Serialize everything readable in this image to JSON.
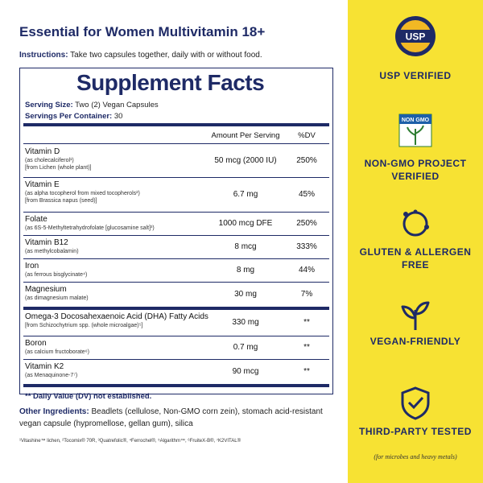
{
  "header": {
    "title": "Essential for Women Multivitamin 18+",
    "instructions_label": "Instructions:",
    "instructions": "Take two capsules together, daily with or without food."
  },
  "facts": {
    "heading": "Supplement Facts",
    "serving_size_label": "Serving Size:",
    "serving_size": "Two (2) Vegan Capsules",
    "servings_label": "Servings Per Container:",
    "servings": "30",
    "columns": [
      "Amount Per Serving",
      "%DV"
    ],
    "rows": [
      {
        "name": "Vitamin D",
        "details": [
          "(as cholecalciferol¹)",
          "[from Lichen (whole plant)]"
        ],
        "amount": "50 mcg (2000 IU)",
        "dv": "250%"
      },
      {
        "name": "Vitamin E",
        "details": [
          "(as alpha tocopherol from mixed tocopherols²)",
          "[from Brassica napus (seed)]"
        ],
        "amount": "6.7 mg",
        "dv": "45%"
      },
      {
        "name": "Folate",
        "details": [
          "(as 6S-5-Methyltetrahydrofolate [glucosamine salt]³)"
        ],
        "amount": "1000 mcg DFE",
        "dv": "250%"
      },
      {
        "name": "Vitamin B12",
        "details": [
          "(as methylcobalamin)"
        ],
        "amount": "8 mcg",
        "dv": "333%"
      },
      {
        "name": "Iron",
        "details": [
          "(as ferrous bisglycinate⁴)"
        ],
        "amount": "8 mg",
        "dv": "44%"
      },
      {
        "name": "Magnesium",
        "details": [
          "(as dimagnesium malate)"
        ],
        "amount": "30 mg",
        "dv": "7%"
      },
      {
        "name": "Omega-3 Docosahexaenoic Acid (DHA) Fatty Acids",
        "details": [
          "[from Schizochytrium spp. (whole microalgae)⁵]"
        ],
        "amount": "330 mg",
        "dv": "**"
      },
      {
        "name": "Boron",
        "details": [
          "(as calcium fructoborate⁶)"
        ],
        "amount": "0.7 mg",
        "dv": "**"
      },
      {
        "name": "Vitamin K2",
        "details": [
          "(as Menaquinone-7⁷)"
        ],
        "amount": "90 mcg",
        "dv": "**"
      }
    ],
    "dv_note": "** Daily Value (DV) not established."
  },
  "other_ingredients": {
    "label": "Other Ingredients:",
    "text": "Beadlets (cellulose, Non-GMO corn zein), stomach acid-resistant vegan capsule (hypromellose, gellan gum), silica"
  },
  "footnote": "¹Vitashine™ lichen, ²Tocomix® 70R, ³Quatrefolic®, ⁴Ferrochel®, ⁵Algarithm™, ⁶FruiteX-B®, ⁷K2VITAL®",
  "badges": [
    {
      "logo": "USP",
      "label": "USP VERIFIED"
    },
    {
      "logo": "NON GMO",
      "label": "NON-GMO PROJECT VERIFIED"
    },
    {
      "label": "GLUTEN & ALLERGEN FREE"
    },
    {
      "label": "VEGAN-FRIENDLY"
    },
    {
      "label": "THIRD-PARTY TESTED",
      "note": "(for microbes and heavy metals)"
    }
  ]
}
